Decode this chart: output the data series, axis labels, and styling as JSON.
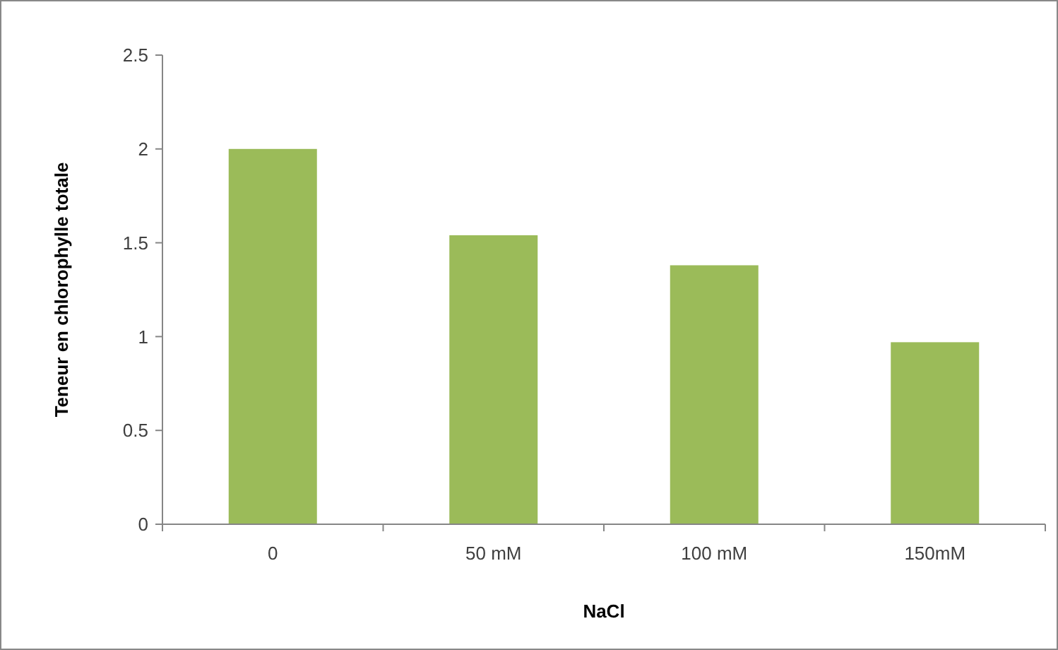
{
  "chart_data": {
    "type": "bar",
    "xlabel": "NaCl",
    "ylabel": "Teneur en chlorophylle totale",
    "categories": [
      "0",
      "50 mM",
      "100 mM",
      "150mM"
    ],
    "values": [
      2.0,
      1.54,
      1.38,
      0.97
    ],
    "color": "#9bbb59",
    "ylim": [
      0,
      2.5
    ],
    "yticks": [
      0,
      0.5,
      1,
      1.5,
      2,
      2.5
    ],
    "grid": false
  }
}
